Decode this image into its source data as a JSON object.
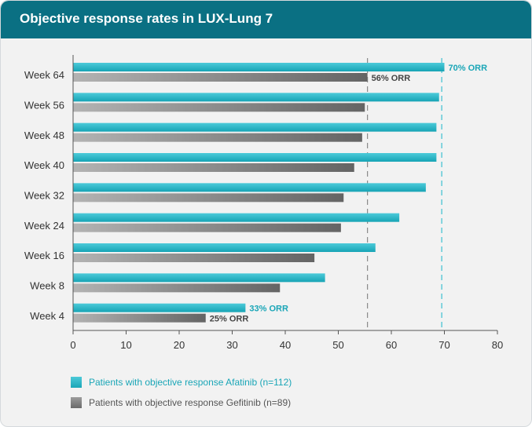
{
  "header": {
    "title": "Objective response rates in LUX-Lung 7"
  },
  "chart_data": {
    "type": "bar",
    "orientation": "horizontal",
    "title": "Objective response rates in LUX-Lung 7",
    "categories": [
      "Week 64",
      "Week 56",
      "Week 48",
      "Week 40",
      "Week 32",
      "Week 24",
      "Week 16",
      "Week 8",
      "Week 4"
    ],
    "series": [
      {
        "name": "Patients with objective response Afatinib (n=112)",
        "color": "#29b7c8",
        "values": [
          70,
          69,
          68.5,
          68.5,
          66.5,
          61.5,
          57,
          47.5,
          32.5
        ]
      },
      {
        "name": "Patients with objective response Gefitinib (n=89)",
        "color": "#777777",
        "values": [
          55.5,
          55,
          54.5,
          53,
          51,
          50.5,
          45.5,
          39,
          25
        ]
      }
    ],
    "annotations": [
      {
        "text": "70% ORR",
        "series": 0,
        "category": "Week 64"
      },
      {
        "text": "56% ORR",
        "series": 1,
        "category": "Week 64"
      },
      {
        "text": "33% ORR",
        "series": 0,
        "category": "Week 4"
      },
      {
        "text": "25% ORR",
        "series": 1,
        "category": "Week 4"
      }
    ],
    "reference_lines": [
      {
        "value": 69.5,
        "series": 0,
        "style": "dashed"
      },
      {
        "value": 55.5,
        "series": 1,
        "style": "dashed"
      }
    ],
    "xlim": [
      0,
      80
    ],
    "xticks": [
      "0",
      "10",
      "20",
      "30",
      "40",
      "50",
      "60",
      "70",
      "80"
    ],
    "xlabel": "",
    "ylabel": "",
    "legend_position": "bottom-left"
  },
  "legend": {
    "afatinib": "Patients with objective response Afatinib (n=112)",
    "gefitinib": "Patients with objective response Gefitinib (n=89)"
  }
}
